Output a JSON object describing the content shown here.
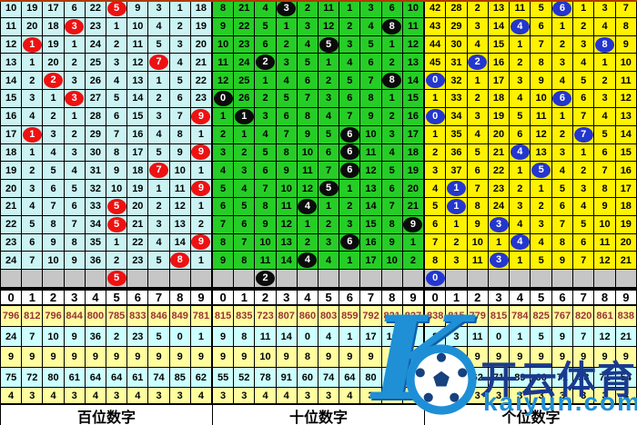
{
  "digit_header": [
    "0",
    "1",
    "2",
    "3",
    "4",
    "5",
    "6",
    "7",
    "8",
    "9"
  ],
  "colors": {
    "hundreds_cell_bg": "#cbf3f3",
    "tens_cell_bg": "#26cd26",
    "units_cell_bg": "#fff200",
    "hundreds_ball": "#ee1111",
    "tens_ball": "#0b0b0b",
    "units_ball": "#2336cf",
    "pending_row_bg": "#c6c6c6",
    "line_color": "#000000",
    "stat_total_text": "#993333",
    "watermark_blue": "#1e8fd6",
    "watermark_navy": "#1a3a8f"
  },
  "panels": [
    {
      "name": "hundreds",
      "footer_label": "百位数字",
      "cell_bg": "#cbf3f3",
      "ball_bg": "#ee1111",
      "rows": [
        {
          "cells": [
            "10",
            "19",
            "17",
            "6",
            "22",
            "5",
            "9",
            "3",
            "1",
            "18"
          ],
          "ball": 5
        },
        {
          "cells": [
            "11",
            "20",
            "18",
            "3",
            "23",
            "1",
            "10",
            "4",
            "2",
            "19"
          ],
          "ball": 3
        },
        {
          "cells": [
            "12",
            "1",
            "19",
            "1",
            "24",
            "2",
            "11",
            "5",
            "3",
            "20"
          ],
          "ball": 1
        },
        {
          "cells": [
            "13",
            "1",
            "20",
            "2",
            "25",
            "3",
            "12",
            "7",
            "4",
            "21"
          ],
          "ball": 7
        },
        {
          "cells": [
            "14",
            "2",
            "2",
            "3",
            "26",
            "4",
            "13",
            "1",
            "5",
            "22"
          ],
          "ball": 2
        },
        {
          "cells": [
            "15",
            "3",
            "1",
            "3",
            "27",
            "5",
            "14",
            "2",
            "6",
            "23"
          ],
          "ball": 3
        },
        {
          "cells": [
            "16",
            "4",
            "2",
            "1",
            "28",
            "6",
            "15",
            "3",
            "7",
            "9"
          ],
          "ball": 9
        },
        {
          "cells": [
            "17",
            "1",
            "3",
            "2",
            "29",
            "7",
            "16",
            "4",
            "8",
            "1"
          ],
          "ball": 1
        },
        {
          "cells": [
            "18",
            "1",
            "4",
            "3",
            "30",
            "8",
            "17",
            "5",
            "9",
            "9"
          ],
          "ball": 9
        },
        {
          "cells": [
            "19",
            "2",
            "5",
            "4",
            "31",
            "9",
            "18",
            "7",
            "10",
            "1"
          ],
          "ball": 7
        },
        {
          "cells": [
            "20",
            "3",
            "6",
            "5",
            "32",
            "10",
            "19",
            "1",
            "11",
            "9"
          ],
          "ball": 9
        },
        {
          "cells": [
            "21",
            "4",
            "7",
            "6",
            "33",
            "5",
            "20",
            "2",
            "12",
            "1"
          ],
          "ball": 5
        },
        {
          "cells": [
            "22",
            "5",
            "8",
            "7",
            "34",
            "5",
            "21",
            "3",
            "13",
            "2"
          ],
          "ball": 5
        },
        {
          "cells": [
            "23",
            "6",
            "9",
            "8",
            "35",
            "1",
            "22",
            "4",
            "14",
            "9"
          ],
          "ball": 9
        },
        {
          "cells": [
            "24",
            "7",
            "10",
            "9",
            "36",
            "2",
            "23",
            "5",
            "8",
            "1"
          ],
          "ball": 8
        }
      ],
      "pending_ball": 5,
      "stats": [
        [
          "796",
          "812",
          "796",
          "844",
          "800",
          "785",
          "833",
          "846",
          "849",
          "781"
        ],
        [
          "24",
          "7",
          "10",
          "9",
          "36",
          "2",
          "23",
          "5",
          "0",
          "1"
        ],
        [
          "9",
          "9",
          "9",
          "9",
          "9",
          "9",
          "9",
          "9",
          "9",
          "9"
        ],
        [
          "75",
          "72",
          "80",
          "61",
          "64",
          "64",
          "61",
          "74",
          "85",
          "62"
        ],
        [
          "4",
          "3",
          "4",
          "3",
          "4",
          "3",
          "4",
          "3",
          "3",
          "4"
        ]
      ]
    },
    {
      "name": "tens",
      "footer_label": "十位数字",
      "cell_bg": "#26cd26",
      "ball_bg": "#0b0b0b",
      "rows": [
        {
          "cells": [
            "8",
            "21",
            "4",
            "3",
            "2",
            "11",
            "1",
            "3",
            "6",
            "10"
          ],
          "ball": 3
        },
        {
          "cells": [
            "9",
            "22",
            "5",
            "1",
            "3",
            "12",
            "2",
            "4",
            "8",
            "11"
          ],
          "ball": 8
        },
        {
          "cells": [
            "10",
            "23",
            "6",
            "2",
            "4",
            "5",
            "3",
            "5",
            "1",
            "12"
          ],
          "ball": 5
        },
        {
          "cells": [
            "11",
            "24",
            "2",
            "3",
            "5",
            "1",
            "4",
            "6",
            "2",
            "13"
          ],
          "ball": 2
        },
        {
          "cells": [
            "12",
            "25",
            "1",
            "4",
            "6",
            "2",
            "5",
            "7",
            "8",
            "14"
          ],
          "ball": 8
        },
        {
          "cells": [
            "0",
            "26",
            "2",
            "5",
            "7",
            "3",
            "6",
            "8",
            "1",
            "15"
          ],
          "ball": 0
        },
        {
          "cells": [
            "1",
            "1",
            "3",
            "6",
            "8",
            "4",
            "7",
            "9",
            "2",
            "16"
          ],
          "ball": 1
        },
        {
          "cells": [
            "2",
            "1",
            "4",
            "7",
            "9",
            "5",
            "6",
            "10",
            "3",
            "17"
          ],
          "ball": 6
        },
        {
          "cells": [
            "3",
            "2",
            "5",
            "8",
            "10",
            "6",
            "6",
            "11",
            "4",
            "18"
          ],
          "ball": 6
        },
        {
          "cells": [
            "4",
            "3",
            "6",
            "9",
            "11",
            "7",
            "6",
            "12",
            "5",
            "19"
          ],
          "ball": 6
        },
        {
          "cells": [
            "5",
            "4",
            "7",
            "10",
            "12",
            "5",
            "1",
            "13",
            "6",
            "20"
          ],
          "ball": 5
        },
        {
          "cells": [
            "6",
            "5",
            "8",
            "11",
            "4",
            "1",
            "2",
            "14",
            "7",
            "21"
          ],
          "ball": 4
        },
        {
          "cells": [
            "7",
            "6",
            "9",
            "12",
            "1",
            "2",
            "3",
            "15",
            "8",
            "9"
          ],
          "ball": 9
        },
        {
          "cells": [
            "8",
            "7",
            "10",
            "13",
            "2",
            "3",
            "6",
            "16",
            "9",
            "1"
          ],
          "ball": 6
        },
        {
          "cells": [
            "9",
            "8",
            "11",
            "14",
            "4",
            "4",
            "1",
            "17",
            "10",
            "2"
          ],
          "ball": 4
        }
      ],
      "pending_ball": 2,
      "stats": [
        [
          "815",
          "835",
          "723",
          "807",
          "860",
          "803",
          "859",
          "792",
          "821",
          "827"
        ],
        [
          "9",
          "8",
          "11",
          "14",
          "0",
          "4",
          "1",
          "17",
          "10",
          "2"
        ],
        [
          "9",
          "9",
          "10",
          "9",
          "8",
          "9",
          "9",
          "9",
          "9",
          "9"
        ],
        [
          "55",
          "52",
          "78",
          "91",
          "60",
          "74",
          "64",
          "80",
          "71",
          "75"
        ],
        [
          "3",
          "3",
          "4",
          "4",
          "3",
          "3",
          "4",
          "3",
          "3",
          "3"
        ]
      ]
    },
    {
      "name": "units",
      "footer_label": "个位数字",
      "cell_bg": "#fff200",
      "ball_bg": "#2336cf",
      "rows": [
        {
          "cells": [
            "42",
            "28",
            "2",
            "13",
            "11",
            "5",
            "6",
            "1",
            "3",
            "7"
          ],
          "ball": 6
        },
        {
          "cells": [
            "43",
            "29",
            "3",
            "14",
            "4",
            "6",
            "1",
            "2",
            "4",
            "8"
          ],
          "ball": 4
        },
        {
          "cells": [
            "44",
            "30",
            "4",
            "15",
            "1",
            "7",
            "2",
            "3",
            "8",
            "9"
          ],
          "ball": 8
        },
        {
          "cells": [
            "45",
            "31",
            "2",
            "16",
            "2",
            "8",
            "3",
            "4",
            "1",
            "10"
          ],
          "ball": 2
        },
        {
          "cells": [
            "0",
            "32",
            "1",
            "17",
            "3",
            "9",
            "4",
            "5",
            "2",
            "11"
          ],
          "ball": 0
        },
        {
          "cells": [
            "1",
            "33",
            "2",
            "18",
            "4",
            "10",
            "6",
            "6",
            "3",
            "12"
          ],
          "ball": 6
        },
        {
          "cells": [
            "0",
            "34",
            "3",
            "19",
            "5",
            "11",
            "1",
            "7",
            "4",
            "13"
          ],
          "ball": 0
        },
        {
          "cells": [
            "1",
            "35",
            "4",
            "20",
            "6",
            "12",
            "2",
            "7",
            "5",
            "14"
          ],
          "ball": 7
        },
        {
          "cells": [
            "2",
            "36",
            "5",
            "21",
            "4",
            "13",
            "3",
            "1",
            "6",
            "15"
          ],
          "ball": 4
        },
        {
          "cells": [
            "3",
            "37",
            "6",
            "22",
            "1",
            "5",
            "4",
            "2",
            "7",
            "16"
          ],
          "ball": 5
        },
        {
          "cells": [
            "4",
            "1",
            "7",
            "23",
            "2",
            "1",
            "5",
            "3",
            "8",
            "17"
          ],
          "ball": 1
        },
        {
          "cells": [
            "5",
            "1",
            "8",
            "24",
            "3",
            "2",
            "6",
            "4",
            "9",
            "18"
          ],
          "ball": 1
        },
        {
          "cells": [
            "6",
            "1",
            "9",
            "3",
            "4",
            "3",
            "7",
            "5",
            "10",
            "19"
          ],
          "ball": 3
        },
        {
          "cells": [
            "7",
            "2",
            "10",
            "1",
            "4",
            "4",
            "8",
            "6",
            "11",
            "20"
          ],
          "ball": 4
        },
        {
          "cells": [
            "8",
            "3",
            "11",
            "3",
            "1",
            "5",
            "9",
            "7",
            "12",
            "21"
          ],
          "ball": 3
        }
      ],
      "pending_ball": 0,
      "stats": [
        [
          "838",
          "815",
          "779",
          "815",
          "784",
          "825",
          "767",
          "820",
          "861",
          "838"
        ],
        [
          "8",
          "3",
          "11",
          "0",
          "1",
          "5",
          "9",
          "7",
          "12",
          "21"
        ],
        [
          "9",
          "9",
          "9",
          "9",
          "9",
          "9",
          "9",
          "9",
          "9",
          "9"
        ],
        [
          "75",
          "93",
          "62",
          "71",
          "89",
          "66",
          "71",
          "58",
          "71",
          "54"
        ],
        [
          "4",
          "3",
          "3",
          "3",
          "3",
          "3",
          "3",
          "3",
          "3",
          "4"
        ]
      ]
    }
  ],
  "watermark": {
    "letter": "K",
    "brand": "开云体育",
    "domain": "kaiyun.com"
  }
}
